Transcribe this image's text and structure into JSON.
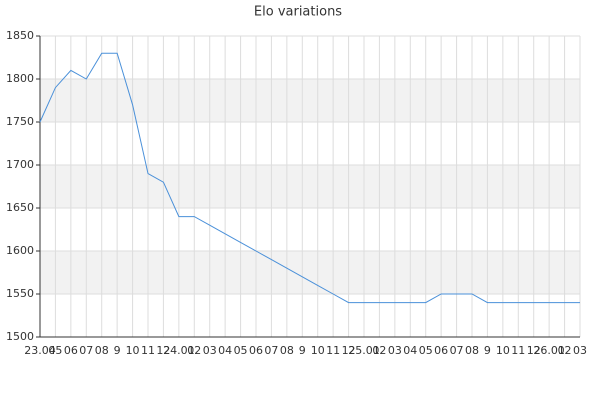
{
  "chart_data": {
    "type": "line",
    "title": "Elo variations",
    "categories": [
      "23.04",
      "05",
      "06",
      "07",
      "08",
      "9",
      "10",
      "11",
      "12",
      "24.01",
      "02",
      "03",
      "04",
      "05",
      "06",
      "07",
      "08",
      "9",
      "10",
      "11",
      "12",
      "25.01",
      "02",
      "03",
      "04",
      "05",
      "06",
      "07",
      "08",
      "9",
      "10",
      "11",
      "12",
      "26.01",
      "02",
      "03"
    ],
    "series": [
      {
        "name": "Elo",
        "color": "#4a90d9",
        "values": [
          1750,
          1790,
          1810,
          1800,
          1830,
          1830,
          1770,
          1690,
          1680,
          1640,
          1640,
          1630,
          1620,
          1610,
          1600,
          1590,
          1580,
          1570,
          1560,
          1550,
          1540,
          1540,
          1540,
          1540,
          1540,
          1540,
          1550,
          1550,
          1550,
          1540,
          1540,
          1540,
          1540,
          1540,
          1540,
          1540
        ]
      }
    ],
    "ylim": [
      1500,
      1850
    ],
    "yticks": [
      1500,
      1550,
      1600,
      1650,
      1700,
      1750,
      1800,
      1850
    ],
    "grid": true
  }
}
